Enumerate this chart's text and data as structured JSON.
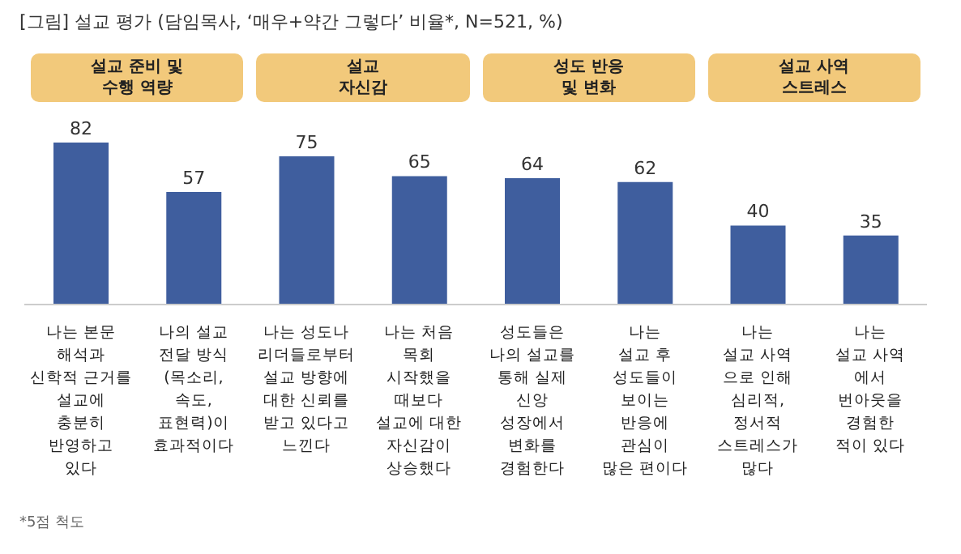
{
  "chart_data": {
    "type": "bar",
    "title": "[그림] 설교 평가 (담임목사, ‘매우+약간 그렇다’ 비율*, N=521, %)",
    "categories": [
      "나는 본문\n해석과\n신학적 근거를\n설교에\n충분히\n반영하고\n있다",
      "나의 설교\n전달 방식\n(목소리,\n속도,\n표현력)이\n효과적이다",
      "나는 성도나\n리더들로부터\n설교 방향에\n대한 신뢰를\n받고 있다고\n느낀다",
      "나는 처음\n목회\n시작했을\n때보다\n설교에 대한\n자신감이\n상승했다",
      "성도들은\n나의 설교를\n통해 실제\n신앙\n성장에서\n변화를\n경험한다",
      "나는\n설교 후\n성도들이\n보이는\n반응에\n관심이\n많은 편이다",
      "나는\n설교 사역\n으로 인해\n심리적,\n정서적\n스트레스가\n많다",
      "나는\n설교 사역\n에서\n번아웃을\n경험한\n적이 있다"
    ],
    "values": [
      82,
      57,
      75,
      65,
      64,
      62,
      40,
      35
    ],
    "color": "#3f5e9e",
    "data_labels": true,
    "annotations": [
      "설교 준비 및\n수행 역량",
      "설교\n자신감",
      "성도 반응\n및 변화",
      "설교 사역\n스트레스",
      "*5점 척도"
    ]
  }
}
